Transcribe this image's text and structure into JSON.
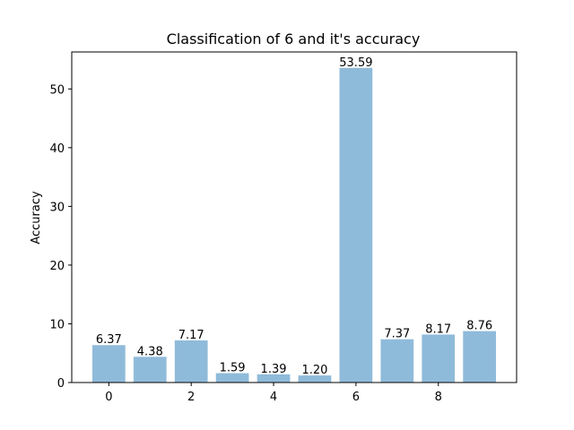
{
  "chart_data": {
    "type": "bar",
    "title": "Classification of 6 and it's accuracy",
    "xlabel": "",
    "ylabel": "Accuracy",
    "categories": [
      0,
      1,
      2,
      3,
      4,
      5,
      6,
      7,
      8,
      9
    ],
    "values": [
      6.37,
      4.38,
      7.17,
      1.59,
      1.39,
      1.2,
      53.59,
      7.37,
      8.17,
      8.76
    ],
    "value_labels": [
      "6.37",
      "4.38",
      "7.17",
      "1.59",
      "1.39",
      "1.20",
      "53.59",
      "7.37",
      "8.17",
      "8.76"
    ],
    "xlim": [
      -0.9,
      9.9
    ],
    "ylim": [
      0,
      56.3
    ],
    "xticks": [
      0,
      2,
      4,
      6,
      8
    ],
    "xtick_labels": [
      "0",
      "2",
      "4",
      "6",
      "8"
    ],
    "yticks": [
      0,
      10,
      20,
      30,
      40,
      50
    ],
    "ytick_labels": [
      "0",
      "10",
      "20",
      "30",
      "40",
      "50"
    ],
    "grid": false,
    "legend": "none",
    "bar_color": "#8fbbda",
    "axis_color": "#000000"
  }
}
